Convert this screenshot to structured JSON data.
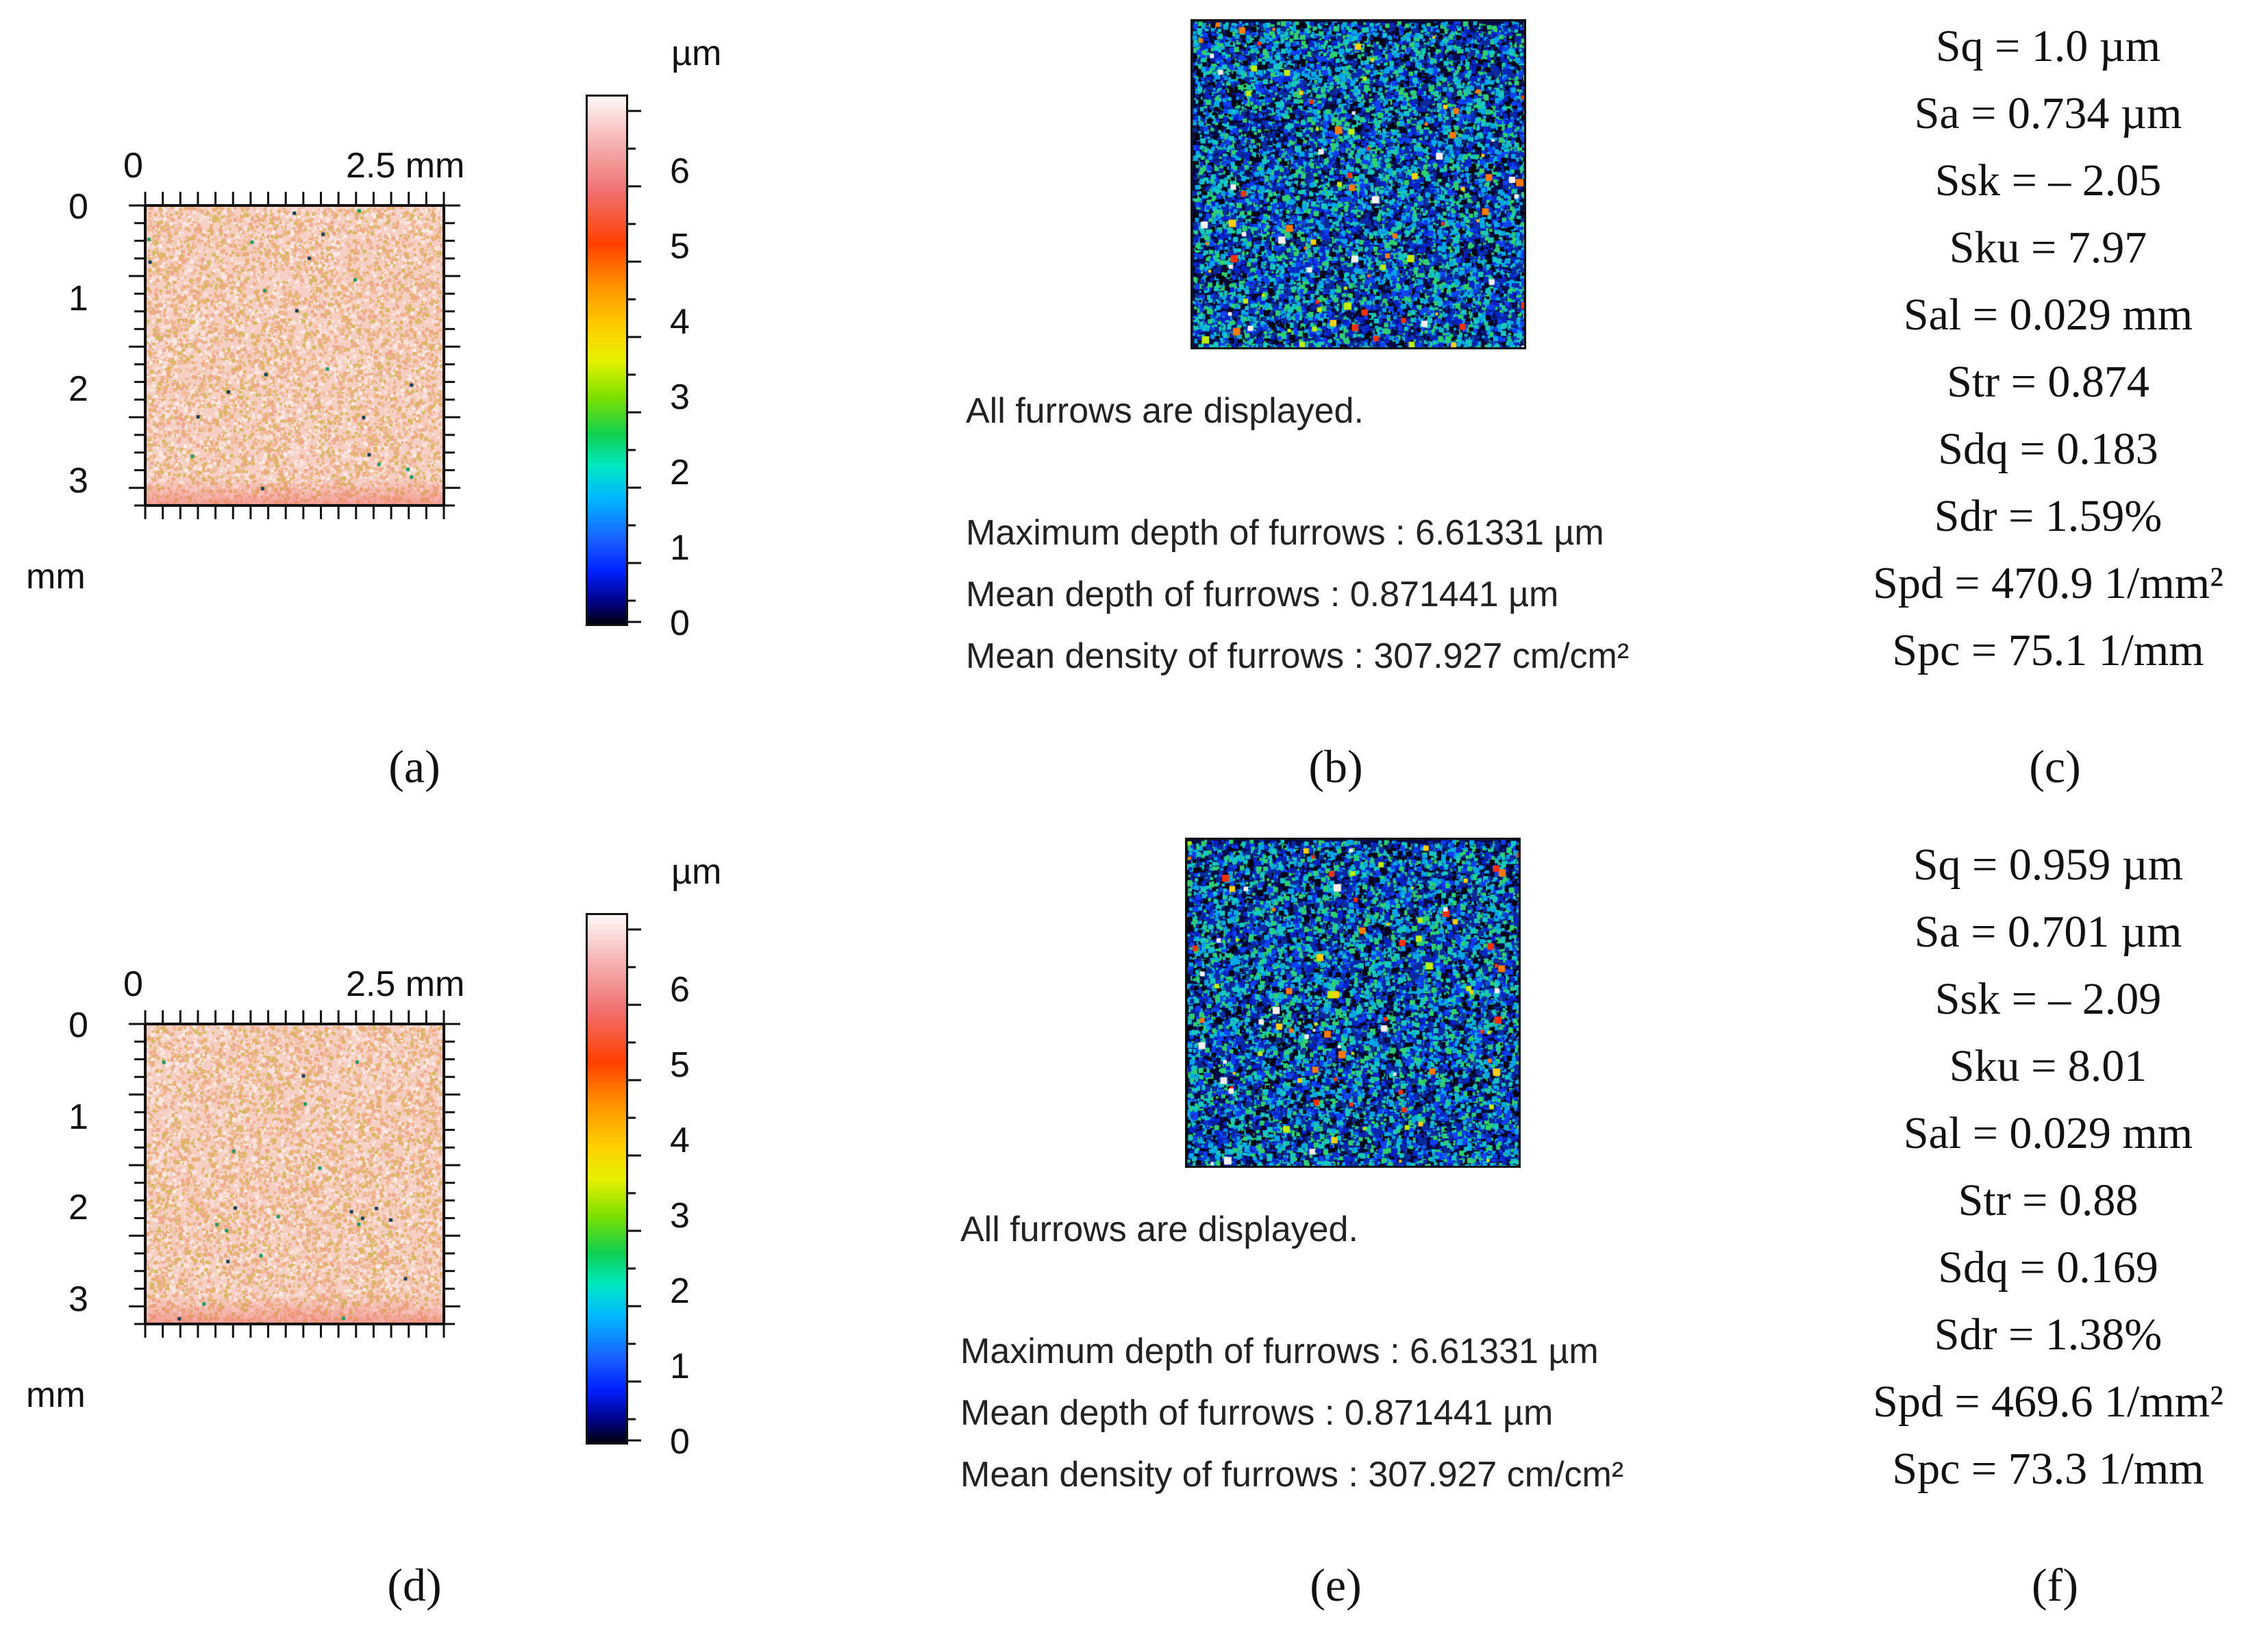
{
  "panels": [
    {
      "map": {
        "x_axis_labels": [
          "0",
          "2.5 mm"
        ],
        "y_axis_labels": [
          "0",
          "1",
          "2",
          "3"
        ],
        "y_unit": "mm",
        "colorbar_unit": "µm",
        "colorbar_labels": [
          "6",
          "5",
          "4",
          "3",
          "2",
          "1",
          "0"
        ],
        "caption": "(a)"
      },
      "furrows": {
        "status": "All furrows are displayed.",
        "max_depth": "Maximum depth of furrows : 6.61331 µm",
        "mean_depth": "Mean depth of furrows : 0.871441 µm",
        "mean_density": "Mean density of furrows : 307.927 cm/cm²",
        "caption": "(b)"
      },
      "parameters": {
        "items": [
          "Sq = 1.0 µm",
          "Sa = 0.734 µm",
          "Ssk = – 2.05",
          "Sku = 7.97",
          "Sal = 0.029 mm",
          "Str = 0.874",
          "Sdq = 0.183",
          "Sdr = 1.59%",
          "Spd = 470.9 1/mm²",
          "Spc = 75.1 1/mm"
        ],
        "caption": "(c)"
      }
    },
    {
      "map": {
        "x_axis_labels": [
          "0",
          "2.5 mm"
        ],
        "y_axis_labels": [
          "0",
          "1",
          "2",
          "3"
        ],
        "y_unit": "mm",
        "colorbar_unit": "µm",
        "colorbar_labels": [
          "6",
          "5",
          "4",
          "3",
          "2",
          "1",
          "0"
        ],
        "caption": "(d)"
      },
      "furrows": {
        "status": "All furrows are displayed.",
        "max_depth": "Maximum depth of furrows : 6.61331 µm",
        "mean_depth": "Mean depth of furrows : 0.871441 µm",
        "mean_density": "Mean density of furrows : 307.927 cm/cm²",
        "caption": "(e)"
      },
      "parameters": {
        "items": [
          "Sq = 0.959 µm",
          "Sa = 0.701 µm",
          "Ssk = – 2.09",
          "Sku = 8.01",
          "Sal = 0.029 mm",
          "Str = 0.88",
          "Sdq = 0.169",
          "Sdr = 1.38%",
          "Spd = 469.6 1/mm²",
          "Spc = 73.3 1/mm"
        ],
        "caption": "(f)"
      }
    }
  ]
}
